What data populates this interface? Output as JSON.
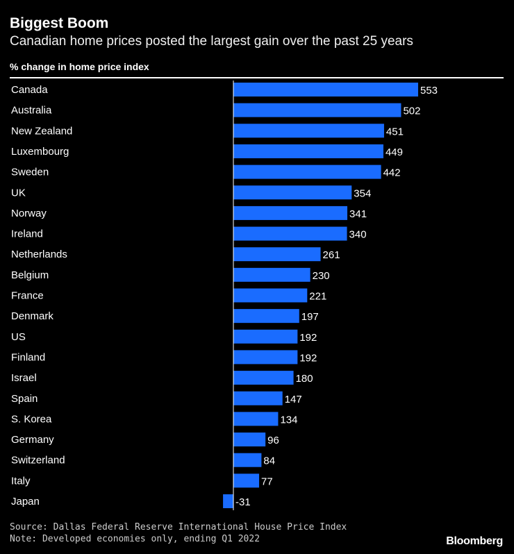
{
  "title": "Biggest Boom",
  "subtitle": "Canadian home prices posted the largest gain over the past 25 years",
  "unit_label": "% change in home price index",
  "source": "Source: Dallas Federal Reserve International House Price Index",
  "note": "Note: Developed economies only, ending Q1 2022",
  "brand": "Bloomberg",
  "colors": {
    "bar": "#1a6cff",
    "background": "#000000",
    "text": "#ffffff"
  },
  "chart_data": {
    "type": "bar",
    "orientation": "horizontal",
    "title": "Biggest Boom",
    "xlabel": "% change in home price index",
    "ylabel": "",
    "categories": [
      "Canada",
      "Australia",
      "New Zealand",
      "Luxembourg",
      "Sweden",
      "UK",
      "Norway",
      "Ireland",
      "Netherlands",
      "Belgium",
      "France",
      "Denmark",
      "US",
      "Finland",
      "Israel",
      "Spain",
      "S. Korea",
      "Germany",
      "Switzerland",
      "Italy",
      "Japan"
    ],
    "values": [
      553,
      502,
      451,
      449,
      442,
      354,
      341,
      340,
      261,
      230,
      221,
      197,
      192,
      192,
      180,
      147,
      134,
      96,
      84,
      77,
      -31
    ],
    "xlim": [
      -31,
      553
    ],
    "data_labels": true,
    "grid": false
  }
}
